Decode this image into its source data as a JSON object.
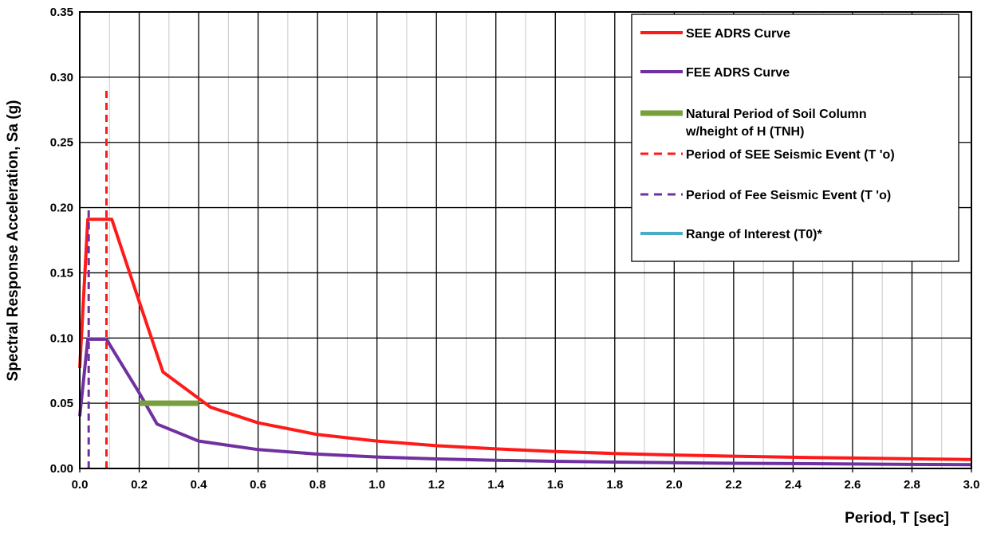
{
  "chart_data": {
    "type": "line",
    "title": "",
    "xlabel": "Period, T [sec]",
    "ylabel": "Spectral Response Acceleration, Sa (g)",
    "xlim": [
      0,
      3.0
    ],
    "ylim": [
      0,
      0.35
    ],
    "x_ticks": [
      "0.0",
      "0.2",
      "0.4",
      "0.6",
      "0.8",
      "1.0",
      "1.2",
      "1.4",
      "1.6",
      "1.8",
      "2.0",
      "2.2",
      "2.4",
      "2.6",
      "2.8",
      "3.0"
    ],
    "y_ticks": [
      "0.00",
      "0.05",
      "0.10",
      "0.15",
      "0.20",
      "0.25",
      "0.30",
      "0.35"
    ],
    "grid": true,
    "legend_position": "top-right",
    "series": [
      {
        "name": "SEE ADRS Curve",
        "color": "#ff1a1a",
        "style": "solid",
        "x": [
          0.0,
          0.027,
          0.108,
          0.2,
          0.28,
          0.44,
          0.6,
          0.8,
          1.0,
          1.2,
          1.4,
          1.6,
          1.8,
          2.0,
          2.2,
          2.4,
          2.6,
          2.8,
          3.0
        ],
        "y": [
          0.077,
          0.191,
          0.191,
          0.128,
          0.074,
          0.047,
          0.035,
          0.026,
          0.021,
          0.0175,
          0.015,
          0.013,
          0.0115,
          0.0103,
          0.0094,
          0.0086,
          0.008,
          0.0074,
          0.0069
        ]
      },
      {
        "name": "FEE ADRS Curve",
        "color": "#7030a0",
        "style": "solid",
        "x": [
          0.0,
          0.027,
          0.09,
          0.2,
          0.26,
          0.4,
          0.6,
          0.8,
          1.0,
          1.2,
          1.4,
          1.6,
          1.8,
          2.0,
          2.2,
          2.4,
          2.6,
          2.8,
          3.0
        ],
        "y": [
          0.04,
          0.099,
          0.099,
          0.058,
          0.034,
          0.021,
          0.0145,
          0.011,
          0.0088,
          0.0073,
          0.0063,
          0.0055,
          0.0049,
          0.0044,
          0.004,
          0.0037,
          0.0034,
          0.0031,
          0.0029
        ]
      },
      {
        "name": "Natural Period of Soil Column w/height of H (TNH)",
        "legend_lines": [
          "Natural Period of Soil Column",
          "w/height of H (TNH)"
        ],
        "color": "#77a03c",
        "style": "thick",
        "x": [
          0.2,
          0.4
        ],
        "y": [
          0.05,
          0.05
        ]
      },
      {
        "name": "Period of SEE Seismic Event (T 'o)",
        "color": "#ff1a1a",
        "style": "dashed",
        "x": [
          0.09,
          0.09
        ],
        "y": [
          0.0,
          0.29
        ]
      },
      {
        "name": "Period of Fee Seismic Event (T 'o)",
        "color": "#7030a0",
        "style": "dashed",
        "x": [
          0.03,
          0.03
        ],
        "y": [
          0.0,
          0.2
        ]
      },
      {
        "name": "Range of Interest (T0)*",
        "color": "#4bacc6",
        "style": "solid",
        "x": [],
        "y": []
      }
    ]
  }
}
